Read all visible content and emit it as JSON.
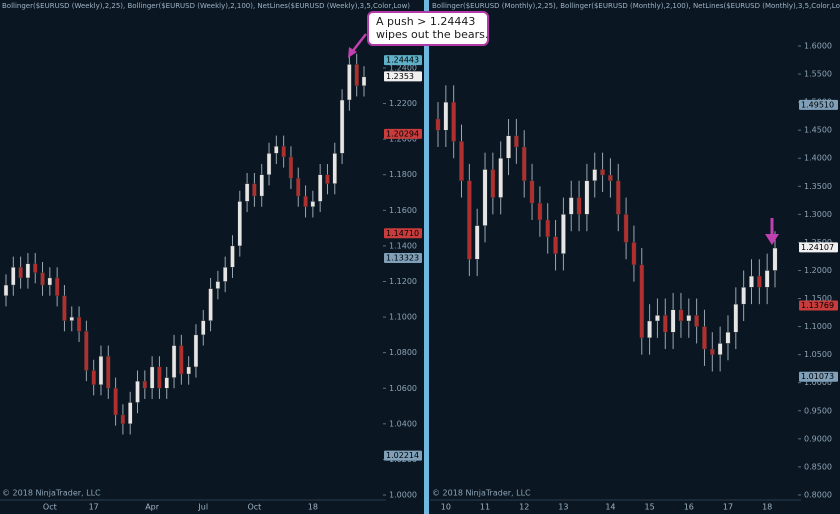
{
  "chart_data": [
    {
      "type": "candlestick",
      "title": "Bollinger($EURUSD (Weekly),2,25), Bollinger($EURUSD (Weekly),2,100), NetLines($EURUSD (Weekly),3,5,Color,Low)",
      "footer": "© 2018 NinjaTrader, LLC",
      "annotation": [
        "A push > 1.24443",
        "wipes out the bears."
      ],
      "categories": [
        null,
        null,
        null,
        null,
        null,
        null,
        "Oct",
        null,
        null,
        null,
        null,
        null,
        "17",
        null,
        null,
        null,
        null,
        null,
        null,
        null,
        "Apr",
        null,
        null,
        null,
        null,
        null,
        null,
        "Jul",
        null,
        null,
        null,
        null,
        null,
        null,
        "Oct",
        null,
        null,
        null,
        null,
        null,
        null,
        null,
        "18",
        null,
        null,
        null,
        null,
        null,
        null,
        null
      ],
      "open": [
        1.112,
        1.118,
        1.128,
        1.122,
        1.13,
        1.125,
        1.118,
        1.122,
        1.112,
        1.098,
        1.1,
        1.092,
        1.07,
        1.062,
        1.078,
        1.06,
        1.045,
        1.04,
        1.052,
        1.064,
        1.06,
        1.072,
        1.06,
        1.066,
        1.084,
        1.068,
        1.072,
        1.09,
        1.098,
        1.116,
        1.12,
        1.128,
        1.14,
        1.165,
        1.175,
        1.168,
        1.18,
        1.192,
        1.196,
        1.19,
        1.178,
        1.168,
        1.162,
        1.165,
        1.18,
        1.175,
        1.192,
        1.222,
        1.242,
        1.23
      ],
      "high": [
        1.124,
        1.134,
        1.134,
        1.136,
        1.136,
        1.131,
        1.128,
        1.128,
        1.118,
        1.106,
        1.106,
        1.098,
        1.076,
        1.084,
        1.084,
        1.066,
        1.051,
        1.058,
        1.07,
        1.07,
        1.078,
        1.078,
        1.072,
        1.09,
        1.09,
        1.078,
        1.096,
        1.104,
        1.122,
        1.126,
        1.134,
        1.146,
        1.171,
        1.181,
        1.181,
        1.186,
        1.198,
        1.202,
        1.202,
        1.196,
        1.184,
        1.174,
        1.171,
        1.186,
        1.186,
        1.198,
        1.228,
        1.248,
        1.248,
        1.241
      ],
      "low": [
        1.106,
        1.112,
        1.116,
        1.116,
        1.119,
        1.112,
        1.112,
        1.106,
        1.092,
        1.092,
        1.086,
        1.064,
        1.056,
        1.056,
        1.054,
        1.039,
        1.034,
        1.034,
        1.046,
        1.054,
        1.054,
        1.054,
        1.054,
        1.06,
        1.062,
        1.062,
        1.066,
        1.084,
        1.092,
        1.11,
        1.114,
        1.122,
        1.134,
        1.159,
        1.162,
        1.162,
        1.174,
        1.186,
        1.184,
        1.172,
        1.162,
        1.156,
        1.156,
        1.159,
        1.169,
        1.169,
        1.186,
        1.216,
        1.224,
        1.224
      ],
      "close": [
        1.118,
        1.128,
        1.122,
        1.13,
        1.125,
        1.118,
        1.122,
        1.112,
        1.098,
        1.1,
        1.092,
        1.07,
        1.062,
        1.078,
        1.06,
        1.045,
        1.04,
        1.052,
        1.064,
        1.06,
        1.072,
        1.06,
        1.066,
        1.084,
        1.068,
        1.072,
        1.09,
        1.098,
        1.116,
        1.12,
        1.128,
        1.14,
        1.165,
        1.175,
        1.168,
        1.18,
        1.192,
        1.196,
        1.19,
        1.178,
        1.168,
        1.162,
        1.165,
        1.18,
        1.175,
        1.192,
        1.222,
        1.242,
        1.23,
        1.235
      ],
      "up_color": "#e6e6e6",
      "down_color": "#b03030",
      "ylim": [
        0.9972,
        1.2782
      ],
      "yticks": [
        {
          "value": 1.0,
          "label": "1.0000"
        },
        {
          "value": 1.02,
          "label": "1.0200"
        },
        {
          "value": 1.04,
          "label": "1.0400"
        },
        {
          "value": 1.06,
          "label": "1.0600"
        },
        {
          "value": 1.08,
          "label": "1.0800"
        },
        {
          "value": 1.1,
          "label": "1.1000"
        },
        {
          "value": 1.12,
          "label": "1.1200"
        },
        {
          "value": 1.14,
          "label": "1.1400"
        },
        {
          "value": 1.16,
          "label": "1.1600"
        },
        {
          "value": 1.18,
          "label": "1.1800"
        },
        {
          "value": 1.2,
          "label": "1.2000"
        },
        {
          "value": 1.22,
          "label": "1.2200"
        },
        {
          "value": 1.24,
          "label": "1.2400"
        },
        {
          "value": 1.26,
          "label": "1.2600"
        }
      ],
      "price_tags": [
        {
          "value": 1.24443,
          "label": "1.24443",
          "color": "#5fb0c8"
        },
        {
          "value": 1.2353,
          "label": "1.2353",
          "color": "#f0f0f0"
        },
        {
          "value": 1.20294,
          "label": "1.20294",
          "color": "#c83c3c"
        },
        {
          "value": 1.1471,
          "label": "1.14710",
          "color": "#c83c3c"
        },
        {
          "value": 1.13323,
          "label": "1.13323",
          "color": "#7fa0b8"
        },
        {
          "value": 1.02214,
          "label": "1.02214",
          "color": "#7fa0b8"
        }
      ]
    },
    {
      "type": "candlestick",
      "title": "Bollinger($EURUSD (Monthly),2,25), Bollinger($EURUSD (Monthly),2,100), NetLines($EURUSD (Monthly),3,5,Color,Low)",
      "footer": "© 2018 NinjaTrader, LLC",
      "categories": [
        null,
        "10",
        null,
        null,
        null,
        null,
        "11",
        null,
        null,
        null,
        null,
        "12",
        null,
        null,
        null,
        null,
        "13",
        null,
        null,
        null,
        null,
        null,
        "14",
        null,
        null,
        null,
        null,
        "15",
        null,
        null,
        null,
        null,
        "16",
        null,
        null,
        null,
        null,
        "17",
        null,
        null,
        null,
        null,
        "18",
        null
      ],
      "open": [
        1.47,
        1.45,
        1.5,
        1.43,
        1.36,
        1.22,
        1.28,
        1.38,
        1.33,
        1.4,
        1.44,
        1.42,
        1.36,
        1.32,
        1.29,
        1.26,
        1.23,
        1.3,
        1.33,
        1.3,
        1.36,
        1.38,
        1.37,
        1.36,
        1.3,
        1.25,
        1.21,
        1.08,
        1.11,
        1.12,
        1.09,
        1.13,
        1.11,
        1.12,
        1.1,
        1.06,
        1.05,
        1.07,
        1.09,
        1.14,
        1.17,
        1.19,
        1.17,
        1.2
      ],
      "high": [
        1.5,
        1.53,
        1.53,
        1.46,
        1.39,
        1.31,
        1.41,
        1.41,
        1.43,
        1.47,
        1.47,
        1.45,
        1.39,
        1.35,
        1.32,
        1.29,
        1.33,
        1.36,
        1.36,
        1.39,
        1.41,
        1.41,
        1.4,
        1.39,
        1.33,
        1.28,
        1.24,
        1.14,
        1.15,
        1.15,
        1.16,
        1.16,
        1.15,
        1.15,
        1.13,
        1.09,
        1.1,
        1.12,
        1.17,
        1.2,
        1.22,
        1.22,
        1.23,
        1.27
      ],
      "low": [
        1.42,
        1.42,
        1.4,
        1.33,
        1.19,
        1.19,
        1.25,
        1.3,
        1.3,
        1.37,
        1.39,
        1.33,
        1.29,
        1.26,
        1.23,
        1.2,
        1.2,
        1.27,
        1.27,
        1.27,
        1.33,
        1.34,
        1.33,
        1.27,
        1.22,
        1.18,
        1.05,
        1.05,
        1.08,
        1.06,
        1.06,
        1.08,
        1.08,
        1.07,
        1.03,
        1.02,
        1.02,
        1.04,
        1.06,
        1.11,
        1.14,
        1.14,
        1.14,
        1.17
      ],
      "close": [
        1.45,
        1.5,
        1.43,
        1.36,
        1.22,
        1.28,
        1.38,
        1.33,
        1.4,
        1.44,
        1.42,
        1.36,
        1.32,
        1.29,
        1.26,
        1.23,
        1.3,
        1.33,
        1.3,
        1.36,
        1.38,
        1.37,
        1.36,
        1.3,
        1.25,
        1.21,
        1.08,
        1.11,
        1.12,
        1.09,
        1.13,
        1.11,
        1.12,
        1.1,
        1.06,
        1.05,
        1.07,
        1.09,
        1.14,
        1.17,
        1.19,
        1.17,
        1.2,
        1.24
      ],
      "up_color": "#e6e6e6",
      "down_color": "#b03030",
      "ylim": [
        0.791,
        1.682
      ],
      "yticks": [
        {
          "value": 0.8,
          "label": "0.8000"
        },
        {
          "value": 0.85,
          "label": "0.8500"
        },
        {
          "value": 0.9,
          "label": "0.9000"
        },
        {
          "value": 0.95,
          "label": "0.9500"
        },
        {
          "value": 1.0,
          "label": "1.0000"
        },
        {
          "value": 1.05,
          "label": "1.0500"
        },
        {
          "value": 1.1,
          "label": "1.1000"
        },
        {
          "value": 1.15,
          "label": "1.1500"
        },
        {
          "value": 1.2,
          "label": "1.2000"
        },
        {
          "value": 1.25,
          "label": "1.2500"
        },
        {
          "value": 1.3,
          "label": "1.3000"
        },
        {
          "value": 1.35,
          "label": "1.3500"
        },
        {
          "value": 1.4,
          "label": "1.4000"
        },
        {
          "value": 1.45,
          "label": "1.4500"
        },
        {
          "value": 1.5,
          "label": "1.5000"
        },
        {
          "value": 1.55,
          "label": "1.5500"
        },
        {
          "value": 1.6,
          "label": "1.6000"
        }
      ],
      "price_tags": [
        {
          "value": 1.4951,
          "label": "1.49510",
          "color": "#7fa0b8"
        },
        {
          "value": 1.24107,
          "label": "1.24107",
          "color": "#f0f0f0"
        },
        {
          "value": 1.13769,
          "label": "1.13769",
          "color": "#c83c3c"
        },
        {
          "value": 1.01073,
          "label": "1.01073",
          "color": "#7fa0b8"
        }
      ]
    }
  ]
}
